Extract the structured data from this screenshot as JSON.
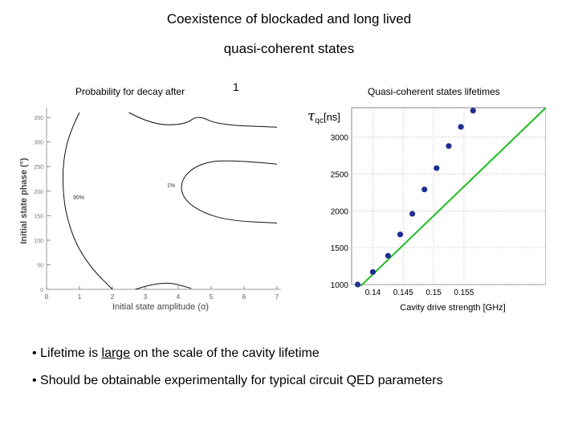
{
  "slide": {
    "title_line1": "Coexistence of blockaded and long lived",
    "title_line2": "quasi-coherent states",
    "left_caption": "Probability for decay after",
    "left_caption_suffix": "1",
    "right_caption": "Quasi-coherent states lifetimes",
    "bullet1_prefix": "• Lifetime is ",
    "bullet1_emph": "large",
    "bullet1_suffix": " on the scale of the cavity lifetime",
    "bullet2": "• Should be obtainable experimentally for typical circuit QED parameters"
  },
  "chart_data": [
    {
      "type": "contour",
      "xlabel": "Initial state amplitude (α)",
      "ylabel": "Initial state phase (°)",
      "xlim": [
        0,
        7
      ],
      "ylim": [
        0,
        360
      ],
      "x_ticks": [
        "0",
        "1",
        "2",
        "3",
        "4",
        "5",
        "6",
        "7"
      ],
      "y_ticks": [
        "0",
        "50",
        "100",
        "150",
        "200",
        "250",
        "300",
        "350"
      ],
      "y_tick_values": [
        0,
        50,
        100,
        150,
        200,
        250,
        300,
        350
      ],
      "contour_labels": [
        "90%",
        "1%"
      ],
      "series": [
        {
          "name": "outer",
          "points": [
            [
              1.0,
              360
            ],
            [
              0.7,
              320
            ],
            [
              0.5,
              260
            ],
            [
              0.5,
              200
            ],
            [
              0.6,
              150
            ],
            [
              0.9,
              90
            ],
            [
              1.4,
              40
            ],
            [
              2.0,
              0
            ]
          ]
        },
        {
          "name": "inner",
          "points": [
            [
              7.0,
              255
            ],
            [
              5.5,
              265
            ],
            [
              4.6,
              255
            ],
            [
              4.1,
              225
            ],
            [
              4.1,
              190
            ],
            [
              4.6,
              160
            ],
            [
              5.5,
              140
            ],
            [
              7.0,
              135
            ]
          ]
        },
        {
          "name": "top",
          "points": [
            [
              2.5,
              360
            ],
            [
              3.2,
              335
            ],
            [
              4.2,
              335
            ],
            [
              4.6,
              355
            ],
            [
              5.2,
              335
            ],
            [
              7.0,
              330
            ]
          ]
        },
        {
          "name": "bottom",
          "points": [
            [
              2.7,
              0
            ],
            [
              3.5,
              18
            ],
            [
              4.4,
              2
            ]
          ]
        }
      ]
    },
    {
      "type": "scatter",
      "title": "τ_qc[ns]",
      "xlabel": "Cavity drive strength [GHz]",
      "xlim": [
        0.1365,
        0.1685
      ],
      "ylim": [
        1000,
        3400
      ],
      "x_ticks": [
        0.14,
        0.145,
        0.15,
        0.155
      ],
      "x_tick_labels": [
        "0.14",
        "0.145",
        "0.15",
        "0.155"
      ],
      "y_ticks": [
        1000,
        1500,
        2000,
        2500,
        3000
      ],
      "y_tick_labels": [
        "1000",
        "1500",
        "2000",
        "2500",
        "3000"
      ],
      "marker_color": "#1f2f8f",
      "fit_color": "#22bb22",
      "x": [
        0.1375,
        0.14,
        0.1425,
        0.1445,
        0.1465,
        0.1485,
        0.1505,
        0.1525,
        0.1545,
        0.1565
      ],
      "y": [
        1000,
        1170,
        1390,
        1680,
        1960,
        2290,
        2580,
        2880,
        3140,
        3360
      ],
      "fit": {
        "x": [
          0.138,
          0.1685
        ],
        "y": [
          980,
          3400
        ]
      }
    }
  ]
}
